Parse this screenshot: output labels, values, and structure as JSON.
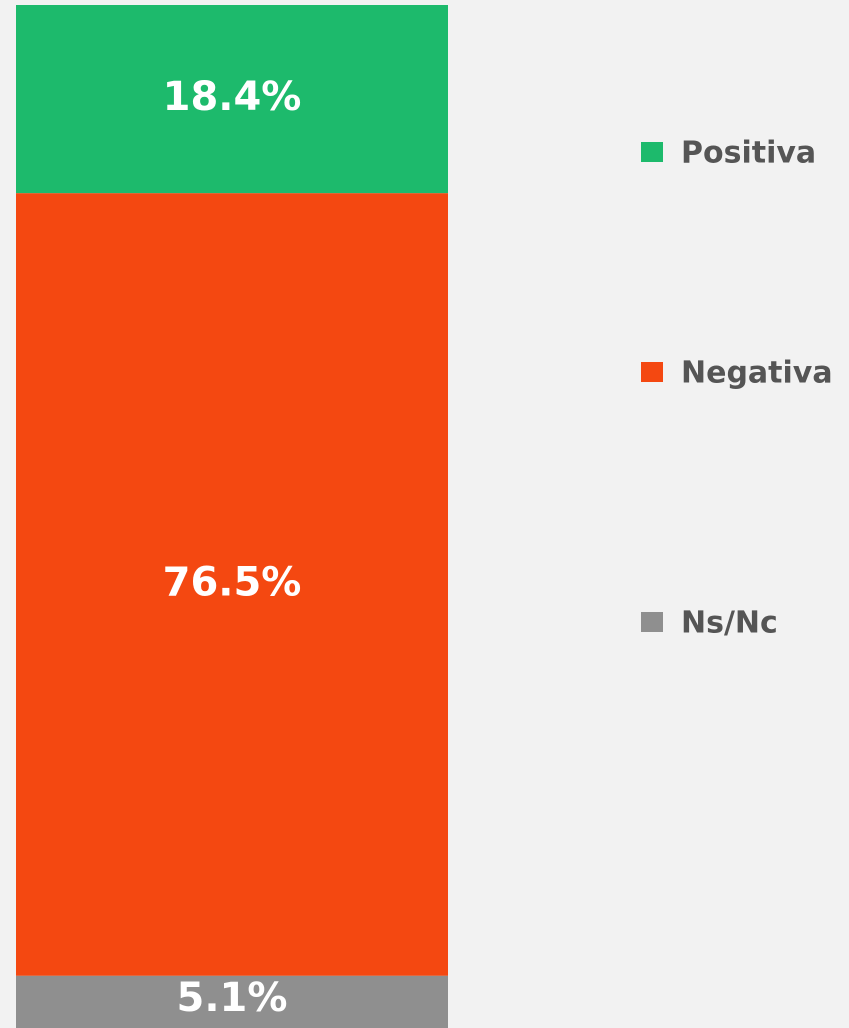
{
  "chart_data": {
    "type": "bar",
    "stacked": true,
    "ylim": [
      0,
      100
    ],
    "legend": "right",
    "series": [
      {
        "name": "Positiva",
        "color": "#1dba6c",
        "values": [
          18.4
        ],
        "value_labels": [
          "18.4%"
        ]
      },
      {
        "name": "Negativa",
        "color": "#f44811",
        "values": [
          76.5
        ],
        "value_labels": [
          "76.5%"
        ]
      },
      {
        "name": "Ns/Nc",
        "color": "#8f8f8f",
        "values": [
          5.1
        ],
        "value_labels": [
          "5.1%"
        ]
      }
    ]
  }
}
